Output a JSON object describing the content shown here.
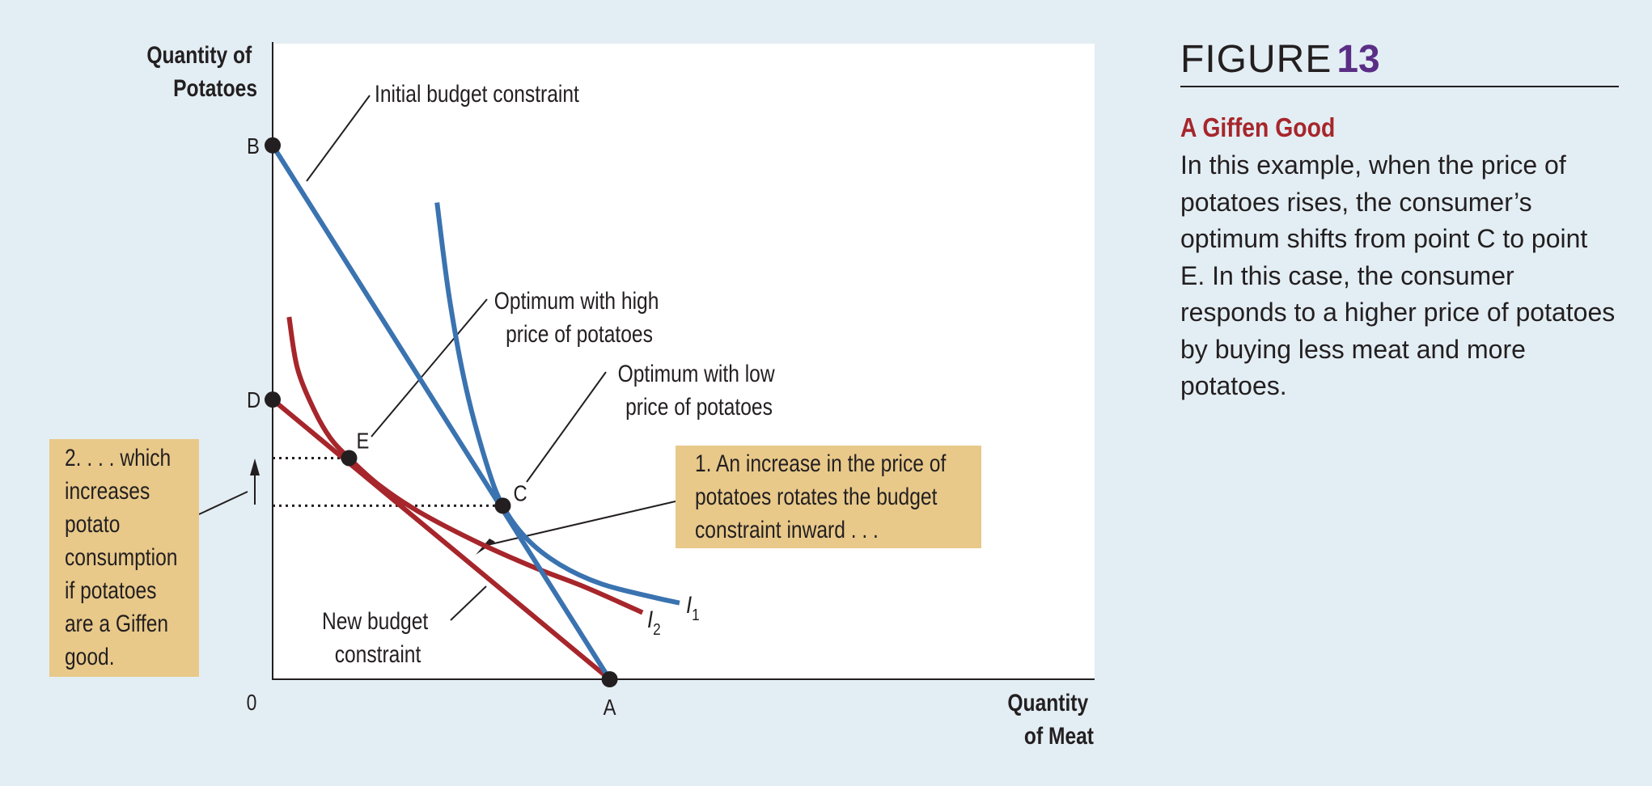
{
  "figure": {
    "label": "FIGURE",
    "number": "13",
    "title": "A Giffen Good",
    "caption": "In this example, when the price of potatoes rises, the consumer’s optimum shifts from point C to point E. In this case, the consumer responds to a higher price of potatoes by buying less meat and more potatoes."
  },
  "chart_data": {
    "type": "line",
    "axes": {
      "y_label_lines": [
        "Quantity of",
        "Potatoes"
      ],
      "x_label_lines": [
        "Quantity",
        "of Meat"
      ],
      "origin_label": "0",
      "xlim": [
        0,
        10
      ],
      "ylim": [
        0,
        10
      ],
      "grid": false
    },
    "points": [
      {
        "label": "B",
        "x": 0,
        "y": 8.4
      },
      {
        "label": "D",
        "x": 0,
        "y": 4.4
      },
      {
        "label": "A",
        "x": 4.1,
        "y": 0
      },
      {
        "label": "C",
        "x": 2.8,
        "y": 2.73
      },
      {
        "label": "E",
        "x": 0.93,
        "y": 3.48
      }
    ],
    "series": [
      {
        "kind": "budget_constraint",
        "color": "#3a73b0",
        "x": [
          0,
          4.1
        ],
        "y": [
          8.4,
          0
        ]
      },
      {
        "kind": "budget_constraint",
        "color": "#a6262b",
        "x": [
          0,
          4.1
        ],
        "y": [
          4.4,
          0
        ]
      },
      {
        "name": "I1",
        "kind": "indifference_curve",
        "color": "#3a73b0",
        "x": [
          2.0,
          2.15,
          2.35,
          2.6,
          2.8,
          3.1,
          3.5,
          4.0,
          4.6,
          4.95
        ],
        "y": [
          7.5,
          6.0,
          4.6,
          3.4,
          2.73,
          2.2,
          1.8,
          1.5,
          1.3,
          1.2
        ]
      },
      {
        "name": "I2",
        "kind": "indifference_curve",
        "color": "#a6262b",
        "x": [
          0.2,
          0.3,
          0.5,
          0.7,
          0.93,
          1.3,
          1.8,
          2.5,
          3.2,
          3.8,
          4.5
        ],
        "y": [
          5.7,
          4.9,
          4.25,
          3.8,
          3.48,
          3.05,
          2.62,
          2.15,
          1.75,
          1.45,
          1.05
        ]
      }
    ],
    "series_labels": [
      {
        "letter": "I",
        "sub": "1"
      },
      {
        "letter": "I",
        "sub": "2"
      }
    ],
    "annotations": [
      {
        "name": "initial-budget-label",
        "lines": [
          "Initial budget constraint"
        ]
      },
      {
        "name": "high-optimum-label",
        "lines": [
          "Optimum with high",
          "price of potatoes"
        ]
      },
      {
        "name": "low-optimum-label",
        "lines": [
          "Optimum with low",
          "price of potatoes"
        ]
      },
      {
        "name": "new-budget-label",
        "lines": [
          "New budget",
          "constraint"
        ]
      }
    ],
    "callouts": [
      {
        "name": "increase-price-callout",
        "lines": [
          "1. An increase in the price of",
          "potatoes rotates the budget",
          "constraint inward . . ."
        ]
      },
      {
        "name": "giffen-callout",
        "lines": [
          "2. . . . which",
          "increases",
          "potato",
          "consumption",
          "if potatoes",
          "are a Giffen",
          "good."
        ]
      }
    ],
    "colors": {
      "background": "#e3eef4",
      "plot_area": "#ffffff",
      "initial": "#3a73b0",
      "new": "#a6262b",
      "callout_fill": "#e8c98a",
      "text": "#231f20",
      "figure_number": "#5b2e86"
    }
  }
}
